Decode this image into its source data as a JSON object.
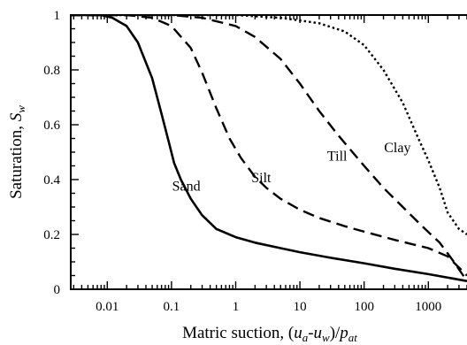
{
  "chart_data": {
    "type": "line",
    "title": "",
    "xlabel": {
      "main": "Matric suction, (",
      "u1": "u",
      "sub_a": "a",
      "dash": "-",
      "u2": "u",
      "sub_w": "w",
      "close": ")/",
      "p": "p",
      "sub_at": "at"
    },
    "ylabel": {
      "main": "Saturation, ",
      "s": "S",
      "sub": "w"
    },
    "x_scale": "log",
    "xlim": [
      0.0027,
      4000
    ],
    "ylim": [
      0,
      1
    ],
    "x_ticks": [
      {
        "value": 0.01,
        "label": "0.01"
      },
      {
        "value": 0.1,
        "label": "0.1"
      },
      {
        "value": 1,
        "label": "1"
      },
      {
        "value": 10,
        "label": "10"
      },
      {
        "value": 100,
        "label": "100"
      },
      {
        "value": 1000,
        "label": "1000"
      }
    ],
    "y_ticks": [
      {
        "value": 0,
        "label": "0"
      },
      {
        "value": 0.2,
        "label": "0.2"
      },
      {
        "value": 0.4,
        "label": "0.4"
      },
      {
        "value": 0.6,
        "label": "0.6"
      },
      {
        "value": 0.8,
        "label": "0.8"
      },
      {
        "value": 1,
        "label": "1"
      }
    ],
    "grid": false,
    "series": [
      {
        "name": "Sand",
        "style": "solid",
        "label_at": {
          "x": 0.17,
          "y": 0.36
        },
        "points": [
          [
            0.0027,
            1.0
          ],
          [
            0.008,
            1.0
          ],
          [
            0.012,
            0.99
          ],
          [
            0.02,
            0.96
          ],
          [
            0.03,
            0.9
          ],
          [
            0.05,
            0.77
          ],
          [
            0.07,
            0.64
          ],
          [
            0.09,
            0.54
          ],
          [
            0.11,
            0.46
          ],
          [
            0.14,
            0.4
          ],
          [
            0.2,
            0.33
          ],
          [
            0.3,
            0.27
          ],
          [
            0.5,
            0.22
          ],
          [
            1,
            0.19
          ],
          [
            2,
            0.17
          ],
          [
            5,
            0.15
          ],
          [
            10,
            0.135
          ],
          [
            30,
            0.115
          ],
          [
            100,
            0.095
          ],
          [
            300,
            0.075
          ],
          [
            1000,
            0.055
          ],
          [
            4000,
            0.03
          ]
        ]
      },
      {
        "name": "Silt",
        "style": "dashed",
        "label_at": {
          "x": 2.5,
          "y": 0.39
        },
        "points": [
          [
            0.0027,
            1.0
          ],
          [
            0.02,
            1.0
          ],
          [
            0.05,
            0.99
          ],
          [
            0.1,
            0.96
          ],
          [
            0.2,
            0.88
          ],
          [
            0.3,
            0.79
          ],
          [
            0.5,
            0.66
          ],
          [
            0.8,
            0.55
          ],
          [
            1.2,
            0.48
          ],
          [
            2,
            0.41
          ],
          [
            3,
            0.37
          ],
          [
            5,
            0.33
          ],
          [
            10,
            0.29
          ],
          [
            20,
            0.26
          ],
          [
            50,
            0.23
          ],
          [
            100,
            0.21
          ],
          [
            300,
            0.18
          ],
          [
            1000,
            0.15
          ],
          [
            2000,
            0.12
          ],
          [
            4000,
            0.05
          ]
        ]
      },
      {
        "name": "Till",
        "style": "dashed",
        "label_at": {
          "x": 38,
          "y": 0.47
        },
        "points": [
          [
            0.0027,
            1.0
          ],
          [
            0.1,
            1.0
          ],
          [
            0.3,
            0.99
          ],
          [
            1,
            0.96
          ],
          [
            2,
            0.92
          ],
          [
            5,
            0.84
          ],
          [
            10,
            0.75
          ],
          [
            20,
            0.65
          ],
          [
            40,
            0.56
          ],
          [
            100,
            0.45
          ],
          [
            200,
            0.37
          ],
          [
            400,
            0.3
          ],
          [
            800,
            0.23
          ],
          [
            1500,
            0.17
          ],
          [
            2500,
            0.1
          ],
          [
            4000,
            0.03
          ]
        ]
      },
      {
        "name": "Clay",
        "style": "dotted",
        "label_at": {
          "x": 330,
          "y": 0.5
        },
        "points": [
          [
            0.0027,
            1.0
          ],
          [
            1,
            1.0
          ],
          [
            5,
            0.99
          ],
          [
            20,
            0.97
          ],
          [
            50,
            0.94
          ],
          [
            100,
            0.89
          ],
          [
            200,
            0.8
          ],
          [
            400,
            0.68
          ],
          [
            700,
            0.55
          ],
          [
            1000,
            0.47
          ],
          [
            1500,
            0.37
          ],
          [
            2000,
            0.28
          ],
          [
            3000,
            0.22
          ],
          [
            4000,
            0.2
          ]
        ]
      }
    ]
  }
}
